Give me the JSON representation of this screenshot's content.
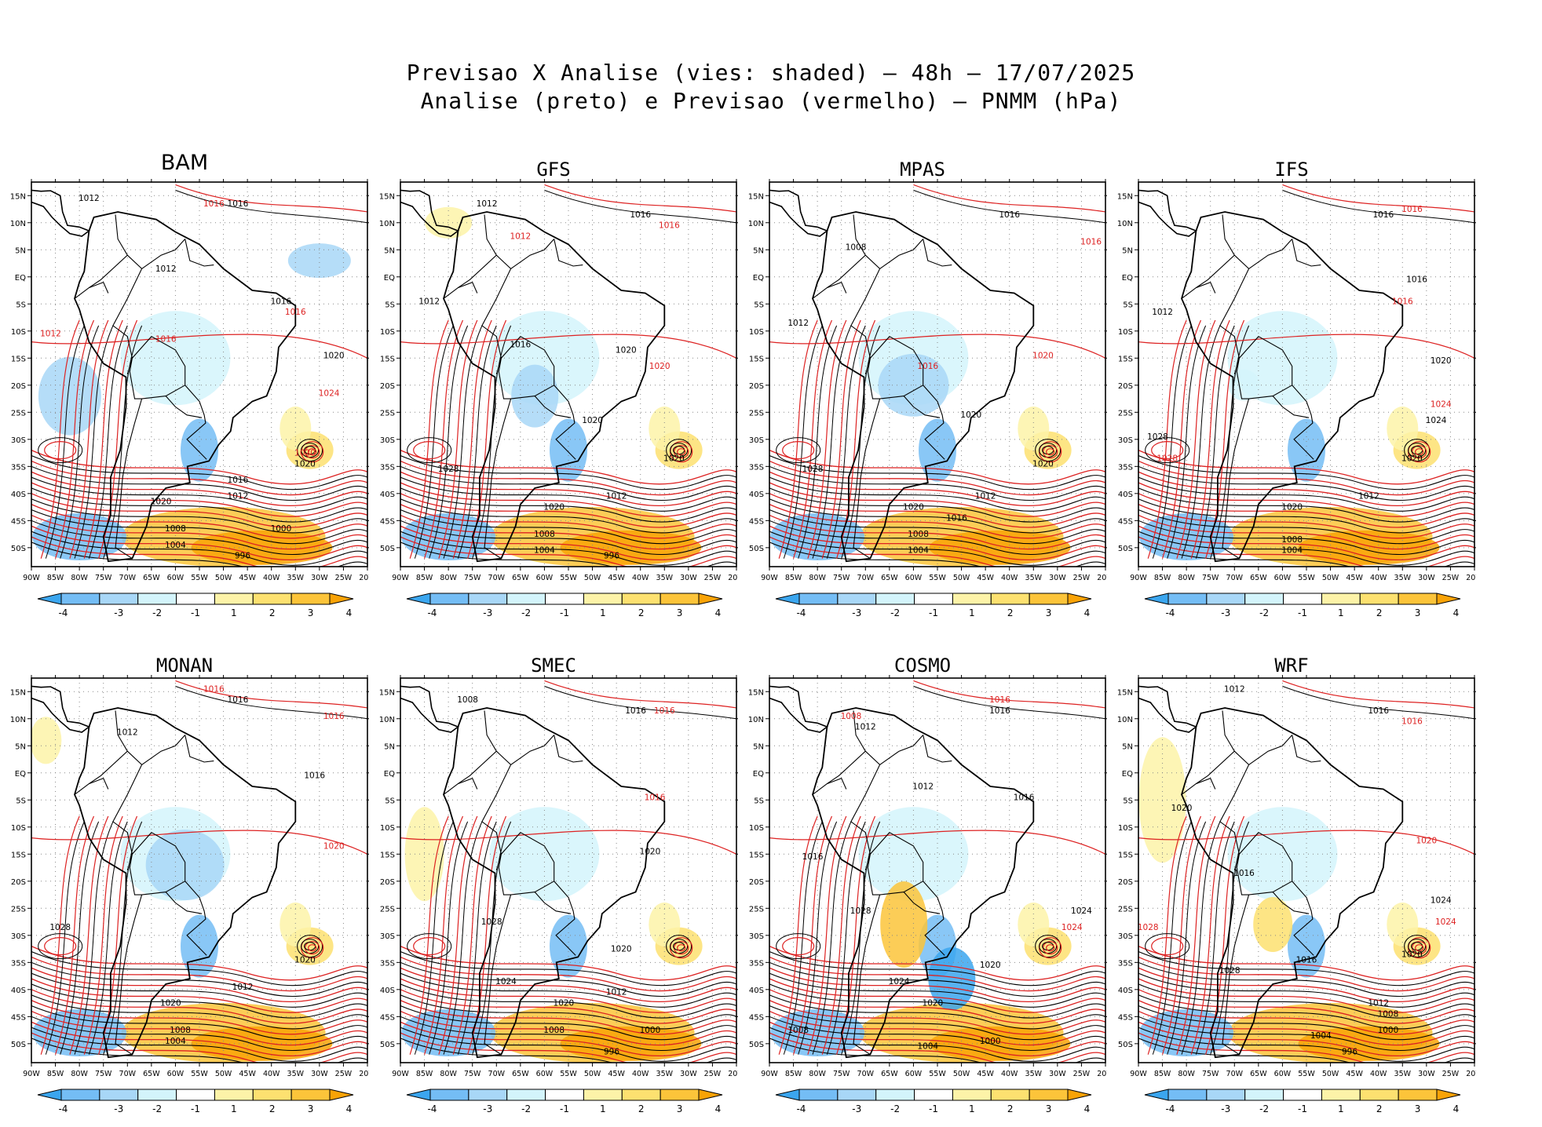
{
  "title_line1": "Previsao X Analise (vies: shaded) – 48h – 17/07/2025",
  "title_line2": "Analise (preto) e Previsao (vermelho) – PNMM (hPa)",
  "lat_labels": [
    "15N",
    "10N",
    "5N",
    "EQ",
    "5S",
    "10S",
    "15S",
    "20S",
    "25S",
    "30S",
    "35S",
    "40S",
    "45S",
    "50S"
  ],
  "lon_labels": [
    "90W",
    "85W",
    "80W",
    "75W",
    "70W",
    "65W",
    "60W",
    "55W",
    "50W",
    "45W",
    "40W",
    "35W",
    "30W",
    "25W",
    "20W"
  ],
  "colorbar": {
    "ticks": [
      "-4",
      "-3",
      "-2",
      "-1",
      "1",
      "2",
      "3",
      "4"
    ],
    "colors": [
      "#3ba6ef",
      "#74bdf5",
      "#a8d7f7",
      "#d3f4fb",
      "#ffffff",
      "#fdf3a8",
      "#fde170",
      "#fcc43a",
      "#f9a306"
    ]
  },
  "contour_colors": {
    "analysis": "#000000",
    "forecast": "#dd2222"
  },
  "panels": [
    {
      "name": "BAM",
      "labels": [
        {
          "t": "1012",
          "lon": -78,
          "lat": 14,
          "c": "a"
        },
        {
          "t": "1016",
          "lon": -52,
          "lat": 13,
          "c": "f"
        },
        {
          "t": "1016",
          "lon": -47,
          "lat": 13,
          "c": "a"
        },
        {
          "t": "1012",
          "lon": -62,
          "lat": 1,
          "c": "a"
        },
        {
          "t": "1016",
          "lon": -38,
          "lat": -5,
          "c": "a"
        },
        {
          "t": "1016",
          "lon": -35,
          "lat": -7,
          "c": "f"
        },
        {
          "t": "1012",
          "lon": -86,
          "lat": -11,
          "c": "f"
        },
        {
          "t": "1016",
          "lon": -62,
          "lat": -12,
          "c": "f"
        },
        {
          "t": "1020",
          "lon": -27,
          "lat": -15,
          "c": "a"
        },
        {
          "t": "1024",
          "lon": -28,
          "lat": -22,
          "c": "f"
        },
        {
          "t": "1020",
          "lon": -33,
          "lat": -33,
          "c": "f"
        },
        {
          "t": "1020",
          "lon": -33,
          "lat": -35,
          "c": "a"
        },
        {
          "t": "1016",
          "lon": -47,
          "lat": -38,
          "c": "a"
        },
        {
          "t": "1012",
          "lon": -47,
          "lat": -41,
          "c": "a"
        },
        {
          "t": "1020",
          "lon": -63,
          "lat": -42,
          "c": "a"
        },
        {
          "t": "1008",
          "lon": -60,
          "lat": -47,
          "c": "a"
        },
        {
          "t": "1004",
          "lon": -60,
          "lat": -50,
          "c": "a"
        },
        {
          "t": "1000",
          "lon": -38,
          "lat": -47,
          "c": "a"
        },
        {
          "t": "996",
          "lon": -46,
          "lat": -52,
          "c": "a"
        }
      ]
    },
    {
      "name": "GFS",
      "labels": [
        {
          "t": "1012",
          "lon": -72,
          "lat": 13,
          "c": "a"
        },
        {
          "t": "1016",
          "lon": -40,
          "lat": 11,
          "c": "a"
        },
        {
          "t": "1016",
          "lon": -34,
          "lat": 9,
          "c": "f"
        },
        {
          "t": "1012",
          "lon": -65,
          "lat": 7,
          "c": "f"
        },
        {
          "t": "1012",
          "lon": -84,
          "lat": -5,
          "c": "a"
        },
        {
          "t": "1016",
          "lon": -65,
          "lat": -13,
          "c": "a"
        },
        {
          "t": "1020",
          "lon": -43,
          "lat": -14,
          "c": "a"
        },
        {
          "t": "1020",
          "lon": -36,
          "lat": -17,
          "c": "f"
        },
        {
          "t": "1020",
          "lon": -50,
          "lat": -27,
          "c": "a"
        },
        {
          "t": "1028",
          "lon": -80,
          "lat": -36,
          "c": "a"
        },
        {
          "t": "1020",
          "lon": -33,
          "lat": -34,
          "c": "a"
        },
        {
          "t": "1012",
          "lon": -45,
          "lat": -41,
          "c": "a"
        },
        {
          "t": "1020",
          "lon": -58,
          "lat": -43,
          "c": "a"
        },
        {
          "t": "1008",
          "lon": -60,
          "lat": -48,
          "c": "a"
        },
        {
          "t": "1004",
          "lon": -60,
          "lat": -51,
          "c": "a"
        },
        {
          "t": "996",
          "lon": -46,
          "lat": -52,
          "c": "a"
        }
      ]
    },
    {
      "name": "MPAS",
      "labels": [
        {
          "t": "1016",
          "lon": -40,
          "lat": 11,
          "c": "a"
        },
        {
          "t": "1016",
          "lon": -23,
          "lat": 6,
          "c": "f"
        },
        {
          "t": "1008",
          "lon": -72,
          "lat": 5,
          "c": "a"
        },
        {
          "t": "1012",
          "lon": -84,
          "lat": -9,
          "c": "a"
        },
        {
          "t": "1016",
          "lon": -57,
          "lat": -17,
          "c": "f"
        },
        {
          "t": "1020",
          "lon": -33,
          "lat": -15,
          "c": "f"
        },
        {
          "t": "1020",
          "lon": -48,
          "lat": -26,
          "c": "a"
        },
        {
          "t": "1028",
          "lon": -81,
          "lat": -36,
          "c": "a"
        },
        {
          "t": "1020",
          "lon": -33,
          "lat": -35,
          "c": "a"
        },
        {
          "t": "1012",
          "lon": -45,
          "lat": -41,
          "c": "a"
        },
        {
          "t": "1020",
          "lon": -60,
          "lat": -43,
          "c": "a"
        },
        {
          "t": "1016",
          "lon": -51,
          "lat": -45,
          "c": "a"
        },
        {
          "t": "1008",
          "lon": -59,
          "lat": -48,
          "c": "a"
        },
        {
          "t": "1004",
          "lon": -59,
          "lat": -51,
          "c": "a"
        }
      ]
    },
    {
      "name": "IFS",
      "labels": [
        {
          "t": "1016",
          "lon": -39,
          "lat": 11,
          "c": "a"
        },
        {
          "t": "1016",
          "lon": -33,
          "lat": 12,
          "c": "f"
        },
        {
          "t": "1016",
          "lon": -32,
          "lat": -1,
          "c": "a"
        },
        {
          "t": "1016",
          "lon": -35,
          "lat": -5,
          "c": "f"
        },
        {
          "t": "1012",
          "lon": -85,
          "lat": -7,
          "c": "a"
        },
        {
          "t": "1020",
          "lon": -27,
          "lat": -16,
          "c": "a"
        },
        {
          "t": "1024",
          "lon": -27,
          "lat": -24,
          "c": "f"
        },
        {
          "t": "1024",
          "lon": -28,
          "lat": -27,
          "c": "a"
        },
        {
          "t": "1028",
          "lon": -86,
          "lat": -30,
          "c": "a"
        },
        {
          "t": "1028",
          "lon": -84,
          "lat": -34,
          "c": "f"
        },
        {
          "t": "1020",
          "lon": -33,
          "lat": -34,
          "c": "a"
        },
        {
          "t": "1012",
          "lon": -42,
          "lat": -41,
          "c": "a"
        },
        {
          "t": "1020",
          "lon": -58,
          "lat": -43,
          "c": "a"
        },
        {
          "t": "1008",
          "lon": -58,
          "lat": -49,
          "c": "a"
        },
        {
          "t": "1004",
          "lon": -58,
          "lat": -51,
          "c": "a"
        }
      ]
    },
    {
      "name": "MONAN",
      "labels": [
        {
          "t": "1016",
          "lon": -52,
          "lat": 15,
          "c": "f"
        },
        {
          "t": "1016",
          "lon": -47,
          "lat": 13,
          "c": "a"
        },
        {
          "t": "1016",
          "lon": -27,
          "lat": 10,
          "c": "f"
        },
        {
          "t": "1012",
          "lon": -70,
          "lat": 7,
          "c": "a"
        },
        {
          "t": "1016",
          "lon": -31,
          "lat": -1,
          "c": "a"
        },
        {
          "t": "1020",
          "lon": -27,
          "lat": -14,
          "c": "f"
        },
        {
          "t": "1028",
          "lon": -84,
          "lat": -29,
          "c": "a"
        },
        {
          "t": "1020",
          "lon": -33,
          "lat": -35,
          "c": "a"
        },
        {
          "t": "1012",
          "lon": -46,
          "lat": -40,
          "c": "a"
        },
        {
          "t": "1020",
          "lon": -61,
          "lat": -43,
          "c": "a"
        },
        {
          "t": "1008",
          "lon": -59,
          "lat": -48,
          "c": "a"
        },
        {
          "t": "1004",
          "lon": -60,
          "lat": -50,
          "c": "a"
        }
      ]
    },
    {
      "name": "SMEC",
      "labels": [
        {
          "t": "1008",
          "lon": -76,
          "lat": 13,
          "c": "a"
        },
        {
          "t": "1016",
          "lon": -41,
          "lat": 11,
          "c": "a"
        },
        {
          "t": "1016",
          "lon": -35,
          "lat": 11,
          "c": "f"
        },
        {
          "t": "1016",
          "lon": -37,
          "lat": -5,
          "c": "f"
        },
        {
          "t": "1020",
          "lon": -38,
          "lat": -15,
          "c": "a"
        },
        {
          "t": "1028",
          "lon": -71,
          "lat": -28,
          "c": "a"
        },
        {
          "t": "1020",
          "lon": -44,
          "lat": -33,
          "c": "a"
        },
        {
          "t": "1024",
          "lon": -68,
          "lat": -39,
          "c": "a"
        },
        {
          "t": "1020",
          "lon": -56,
          "lat": -43,
          "c": "a"
        },
        {
          "t": "1012",
          "lon": -45,
          "lat": -41,
          "c": "a"
        },
        {
          "t": "1008",
          "lon": -58,
          "lat": -48,
          "c": "a"
        },
        {
          "t": "1000",
          "lon": -38,
          "lat": -48,
          "c": "a"
        },
        {
          "t": "996",
          "lon": -46,
          "lat": -52,
          "c": "a"
        }
      ]
    },
    {
      "name": "COSMO",
      "labels": [
        {
          "t": "1016",
          "lon": -42,
          "lat": 13,
          "c": "f"
        },
        {
          "t": "1016",
          "lon": -42,
          "lat": 11,
          "c": "a"
        },
        {
          "t": "1008",
          "lon": -73,
          "lat": 10,
          "c": "f"
        },
        {
          "t": "1012",
          "lon": -70,
          "lat": 8,
          "c": "a"
        },
        {
          "t": "1012",
          "lon": -58,
          "lat": -3,
          "c": "a"
        },
        {
          "t": "1016",
          "lon": -37,
          "lat": -5,
          "c": "a"
        },
        {
          "t": "1016",
          "lon": -81,
          "lat": -16,
          "c": "a"
        },
        {
          "t": "1024",
          "lon": -25,
          "lat": -26,
          "c": "a"
        },
        {
          "t": "1024",
          "lon": -27,
          "lat": -29,
          "c": "f"
        },
        {
          "t": "1028",
          "lon": -71,
          "lat": -26,
          "c": "a"
        },
        {
          "t": "1020",
          "lon": -44,
          "lat": -36,
          "c": "a"
        },
        {
          "t": "1024",
          "lon": -63,
          "lat": -39,
          "c": "a"
        },
        {
          "t": "1020",
          "lon": -56,
          "lat": -43,
          "c": "a"
        },
        {
          "t": "1008",
          "lon": -84,
          "lat": -48,
          "c": "a"
        },
        {
          "t": "1004",
          "lon": -57,
          "lat": -51,
          "c": "a"
        },
        {
          "t": "1000",
          "lon": -44,
          "lat": -50,
          "c": "a"
        }
      ]
    },
    {
      "name": "WRF",
      "labels": [
        {
          "t": "1012",
          "lon": -70,
          "lat": 15,
          "c": "a"
        },
        {
          "t": "1016",
          "lon": -40,
          "lat": 11,
          "c": "a"
        },
        {
          "t": "1016",
          "lon": -33,
          "lat": 9,
          "c": "f"
        },
        {
          "t": "1020",
          "lon": -81,
          "lat": -7,
          "c": "a"
        },
        {
          "t": "1016",
          "lon": -68,
          "lat": -19,
          "c": "a"
        },
        {
          "t": "1020",
          "lon": -30,
          "lat": -13,
          "c": "f"
        },
        {
          "t": "1024",
          "lon": -27,
          "lat": -24,
          "c": "a"
        },
        {
          "t": "1024",
          "lon": -26,
          "lat": -28,
          "c": "f"
        },
        {
          "t": "1028",
          "lon": -88,
          "lat": -29,
          "c": "f"
        },
        {
          "t": "1028",
          "lon": -71,
          "lat": -37,
          "c": "a"
        },
        {
          "t": "1020",
          "lon": -33,
          "lat": -34,
          "c": "a"
        },
        {
          "t": "1016",
          "lon": -55,
          "lat": -35,
          "c": "a"
        },
        {
          "t": "1012",
          "lon": -40,
          "lat": -43,
          "c": "a"
        },
        {
          "t": "1008",
          "lon": -38,
          "lat": -45,
          "c": "a"
        },
        {
          "t": "1004",
          "lon": -52,
          "lat": -49,
          "c": "a"
        },
        {
          "t": "1000",
          "lon": -38,
          "lat": -48,
          "c": "a"
        },
        {
          "t": "996",
          "lon": -46,
          "lat": -52,
          "c": "a"
        }
      ]
    }
  ]
}
